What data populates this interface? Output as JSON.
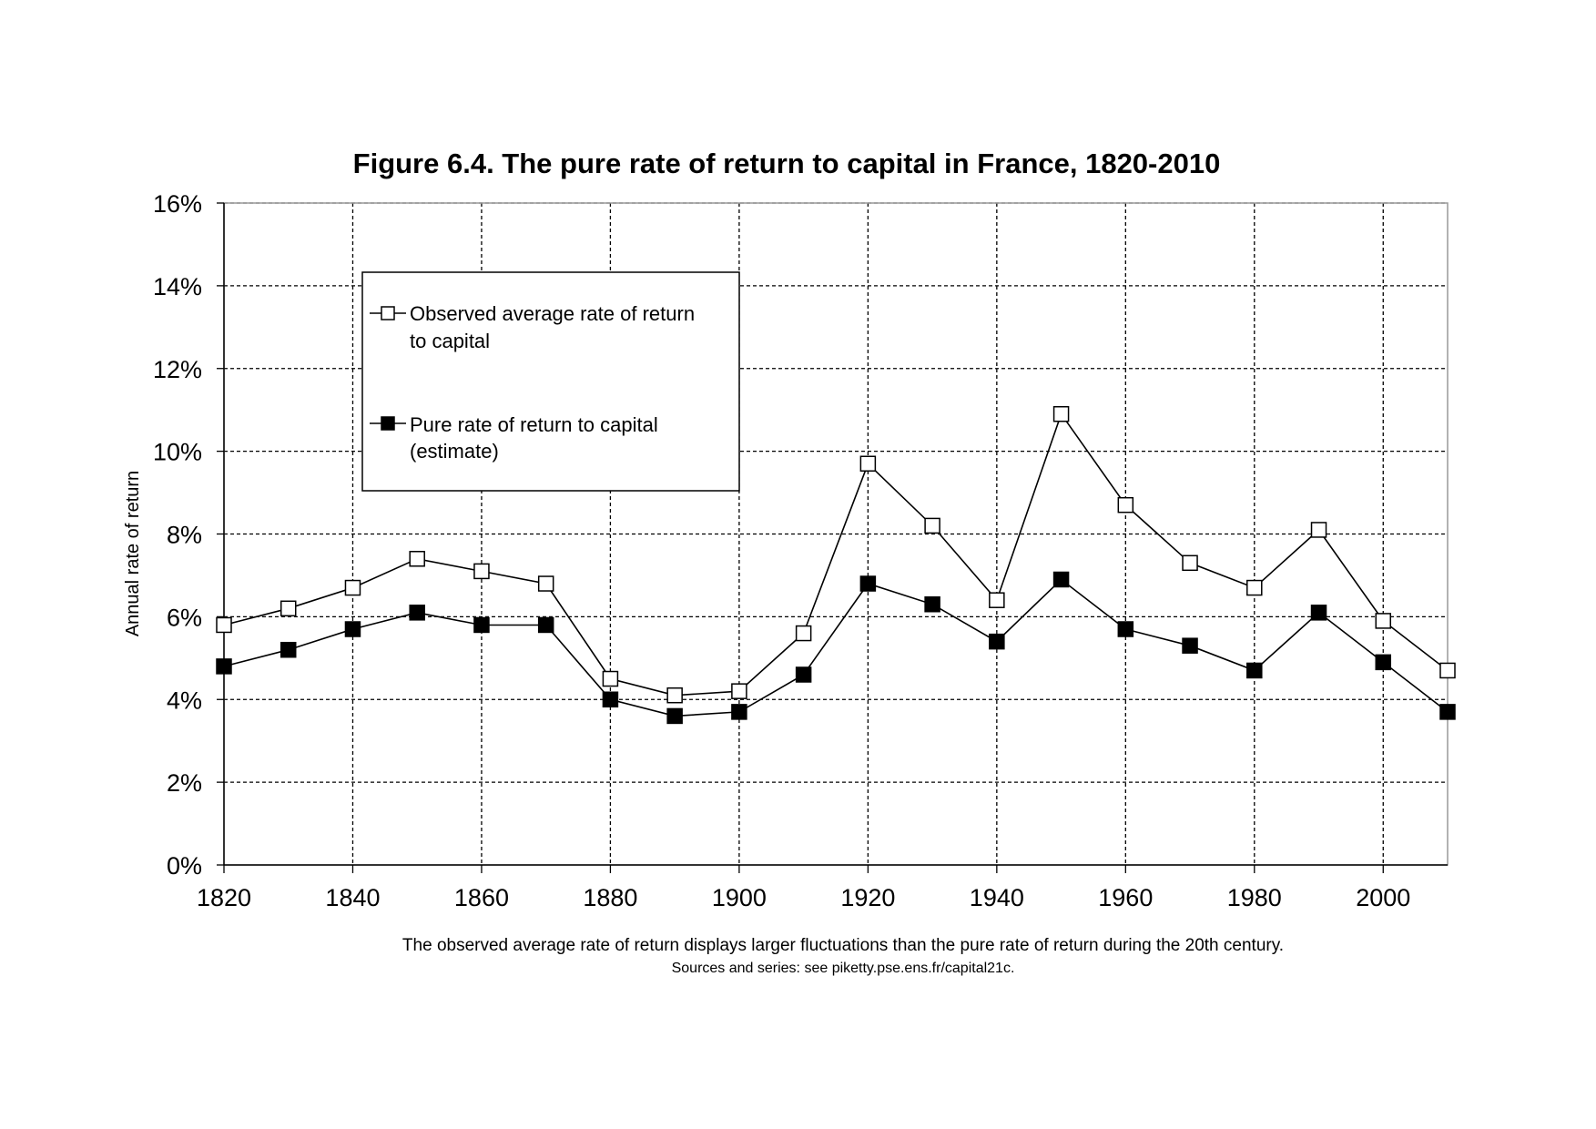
{
  "chart_data": {
    "type": "line",
    "title": "Figure 6.4. The pure rate of return to capital in France, 1820-2010",
    "xlabel": "",
    "ylabel": "Annual rate of return",
    "x": [
      1820,
      1830,
      1840,
      1850,
      1860,
      1870,
      1880,
      1890,
      1900,
      1910,
      1920,
      1930,
      1940,
      1950,
      1960,
      1970,
      1980,
      1990,
      2000,
      2010
    ],
    "xlim": [
      1820,
      2010
    ],
    "ylim": [
      0,
      16
    ],
    "x_ticks": [
      "1820",
      "1840",
      "1860",
      "1880",
      "1900",
      "1920",
      "1940",
      "1960",
      "1980",
      "2000"
    ],
    "y_ticks": [
      "0%",
      "2%",
      "4%",
      "6%",
      "8%",
      "10%",
      "12%",
      "14%",
      "16%"
    ],
    "grid": true,
    "legend_position": "top-left",
    "series": [
      {
        "name": "Observed average rate of return to capital",
        "legend_lines": [
          "Observed average rate of return",
          "to capital"
        ],
        "marker": "hollow-square",
        "values": [
          5.8,
          6.2,
          6.7,
          7.4,
          7.1,
          6.8,
          4.5,
          4.1,
          4.2,
          5.6,
          9.7,
          8.2,
          6.4,
          10.9,
          8.7,
          7.3,
          6.7,
          8.1,
          5.9,
          4.7
        ]
      },
      {
        "name": "Pure rate of return to capital (estimate)",
        "legend_lines": [
          "Pure rate of return to capital",
          "(estimate)"
        ],
        "marker": "filled-square",
        "values": [
          4.8,
          5.2,
          5.7,
          6.1,
          5.8,
          5.8,
          4.0,
          3.6,
          3.7,
          4.6,
          6.8,
          6.3,
          5.4,
          6.9,
          5.7,
          5.3,
          4.7,
          6.1,
          4.9,
          3.7
        ]
      }
    ],
    "caption": "The observed average rate of return displays larger fluctuations than the pure rate of return during the 20th century.",
    "source": "Sources and series: see piketty.pse.ens.fr/capital21c."
  },
  "colors": {
    "line": "#000000",
    "grid": "#000000",
    "hollow_fill": "#ffffff",
    "filled_fill": "#000000",
    "background": "#ffffff"
  }
}
